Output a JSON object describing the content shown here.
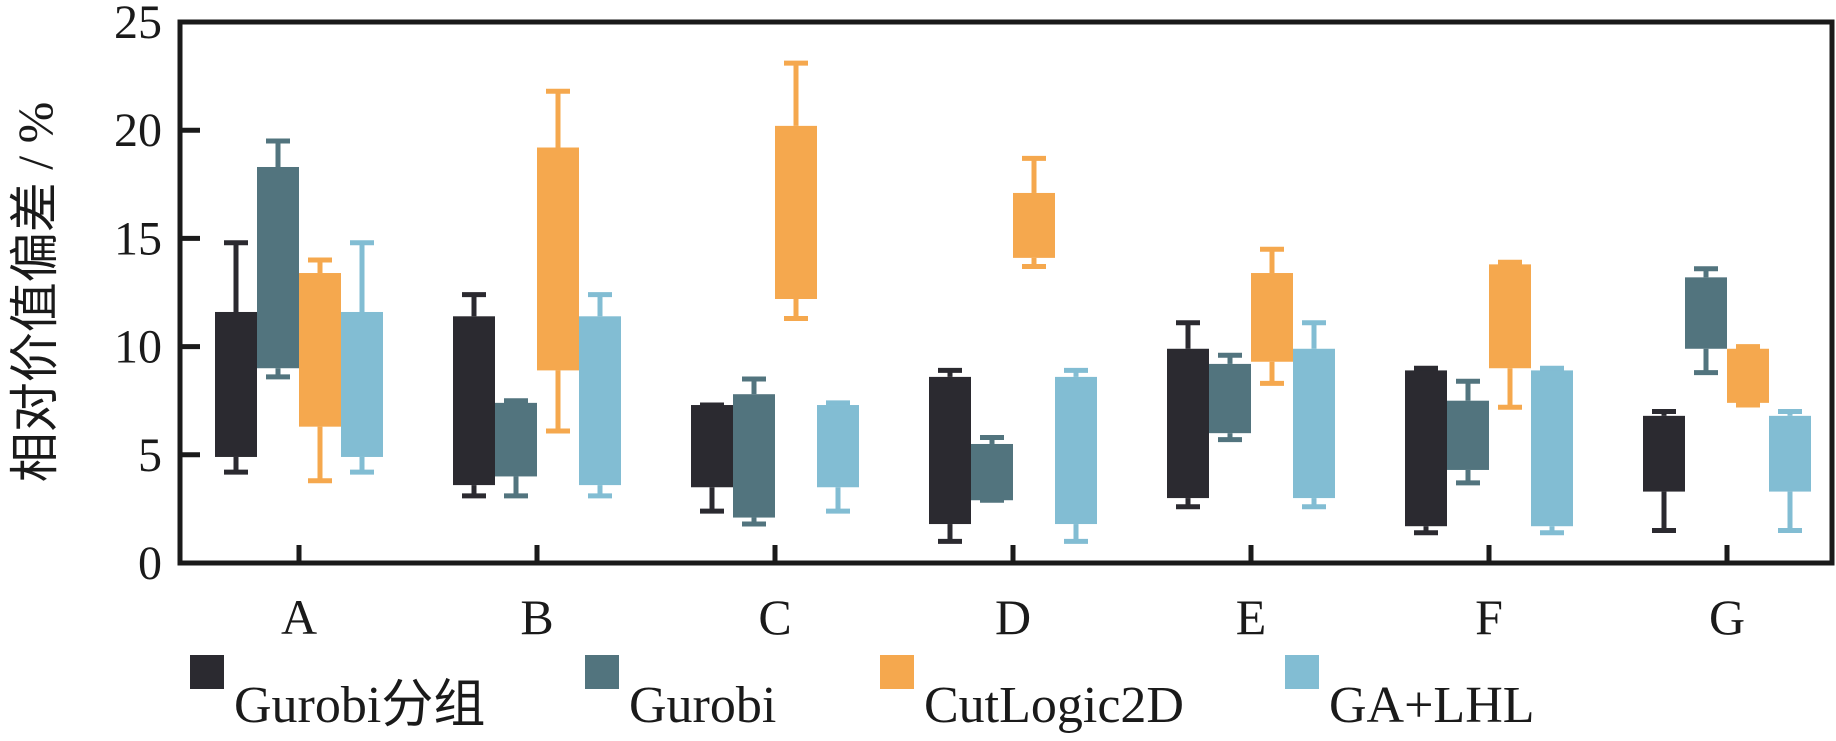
{
  "chart_data": {
    "type": "box",
    "title": "",
    "xlabel": "",
    "ylabel": "相对价值偏差 / %",
    "ylim": [
      0,
      25
    ],
    "yticks": [
      0,
      5,
      10,
      15,
      20,
      25
    ],
    "grid": false,
    "legend_position": "bottom",
    "categories": [
      "A",
      "B",
      "C",
      "D",
      "E",
      "F",
      "G"
    ],
    "series": [
      {
        "name": "Gurobi分组",
        "color": "#2b2a30",
        "boxes": [
          {
            "whisker_low": 4.2,
            "q1": 4.9,
            "q3": 11.6,
            "whisker_high": 14.8
          },
          {
            "whisker_low": 3.1,
            "q1": 3.6,
            "q3": 11.4,
            "whisker_high": 12.4
          },
          {
            "whisker_low": 2.4,
            "q1": 3.5,
            "q3": 7.3,
            "whisker_high": 7.3
          },
          {
            "whisker_low": 1.0,
            "q1": 1.8,
            "q3": 8.6,
            "whisker_high": 8.9
          },
          {
            "whisker_low": 2.6,
            "q1": 3.0,
            "q3": 9.9,
            "whisker_high": 11.1
          },
          {
            "whisker_low": 1.4,
            "q1": 1.7,
            "q3": 8.9,
            "whisker_high": 9.0
          },
          {
            "whisker_low": 1.5,
            "q1": 3.3,
            "q3": 6.8,
            "whisker_high": 7.0
          }
        ]
      },
      {
        "name": "Gurobi",
        "color": "#52747e",
        "boxes": [
          {
            "whisker_low": 8.6,
            "q1": 9.0,
            "q3": 18.3,
            "whisker_high": 19.5
          },
          {
            "whisker_low": 3.1,
            "q1": 4.0,
            "q3": 7.4,
            "whisker_high": 7.5
          },
          {
            "whisker_low": 1.8,
            "q1": 2.1,
            "q3": 7.8,
            "whisker_high": 8.5
          },
          {
            "whisker_low": 2.9,
            "q1": 2.9,
            "q3": 5.5,
            "whisker_high": 5.8
          },
          {
            "whisker_low": 5.7,
            "q1": 6.0,
            "q3": 9.2,
            "whisker_high": 9.6
          },
          {
            "whisker_low": 3.7,
            "q1": 4.3,
            "q3": 7.5,
            "whisker_high": 8.4
          },
          {
            "whisker_low": 8.8,
            "q1": 9.9,
            "q3": 13.2,
            "whisker_high": 13.6
          }
        ]
      },
      {
        "name": "CutLogic2D",
        "color": "#f5a84e",
        "boxes": [
          {
            "whisker_low": 3.8,
            "q1": 6.3,
            "q3": 13.4,
            "whisker_high": 14.0
          },
          {
            "whisker_low": 6.1,
            "q1": 8.9,
            "q3": 19.2,
            "whisker_high": 21.8
          },
          {
            "whisker_low": 11.3,
            "q1": 12.2,
            "q3": 20.2,
            "whisker_high": 23.1
          },
          {
            "whisker_low": 13.7,
            "q1": 14.1,
            "q3": 17.1,
            "whisker_high": 18.7
          },
          {
            "whisker_low": 8.3,
            "q1": 9.3,
            "q3": 13.4,
            "whisker_high": 14.5
          },
          {
            "whisker_low": 7.2,
            "q1": 9.0,
            "q3": 13.8,
            "whisker_high": 13.9
          },
          {
            "whisker_low": 7.3,
            "q1": 7.4,
            "q3": 9.9,
            "whisker_high": 10.0
          }
        ]
      },
      {
        "name": "GA+LHL",
        "color": "#82bdd3",
        "boxes": [
          {
            "whisker_low": 4.2,
            "q1": 4.9,
            "q3": 11.6,
            "whisker_high": 14.8
          },
          {
            "whisker_low": 3.1,
            "q1": 3.6,
            "q3": 11.4,
            "whisker_high": 12.4
          },
          {
            "whisker_low": 2.4,
            "q1": 3.5,
            "q3": 7.3,
            "whisker_high": 7.4
          },
          {
            "whisker_low": 1.0,
            "q1": 1.8,
            "q3": 8.6,
            "whisker_high": 8.9
          },
          {
            "whisker_low": 2.6,
            "q1": 3.0,
            "q3": 9.9,
            "whisker_high": 11.1
          },
          {
            "whisker_low": 1.4,
            "q1": 1.7,
            "q3": 8.9,
            "whisker_high": 9.0
          },
          {
            "whisker_low": 1.5,
            "q1": 3.3,
            "q3": 6.8,
            "whisker_high": 7.0
          }
        ]
      }
    ]
  }
}
